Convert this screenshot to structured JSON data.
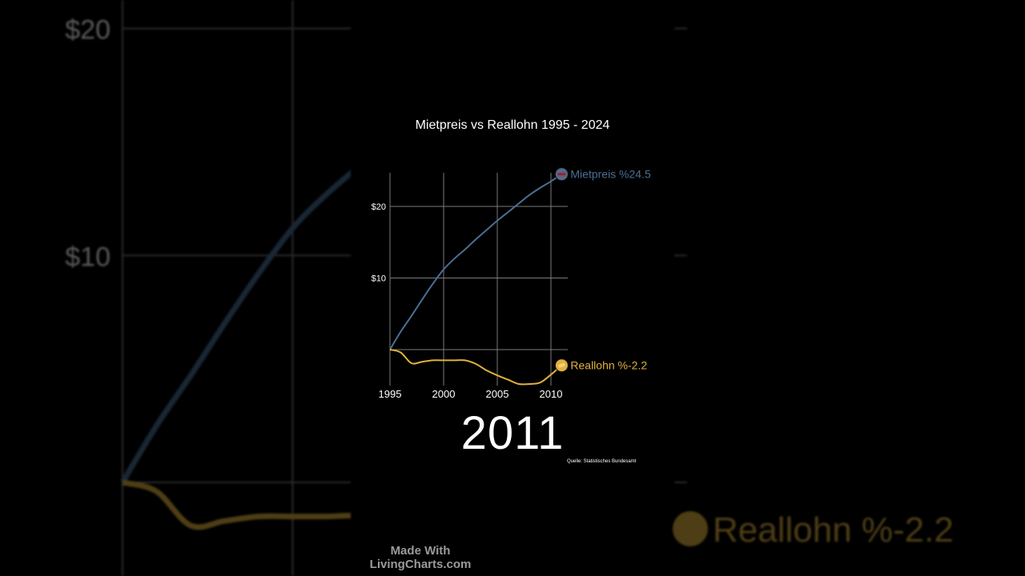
{
  "title": "Mietpreis vs Reallohn 1995 - 2024",
  "current_year": "2011",
  "source": "Quelle: Statistisches Bundesamt",
  "watermark": {
    "line1": "Made With",
    "line2": "LivingCharts.com"
  },
  "colors": {
    "mietpreis": "#4a6f95",
    "reallohn": "#e0b23d",
    "grid": "#7a7a7a",
    "text": "#ffffff"
  },
  "icons": {
    "mietpreis": "flag-icon",
    "reallohn": "coin-icon"
  },
  "chart_data": {
    "type": "line",
    "title": "Mietpreis vs Reallohn 1995 - 2024",
    "xlabel": "",
    "ylabel": "",
    "xlim": [
      1995,
      2011.5
    ],
    "ylim": [
      -5,
      25
    ],
    "x_ticks": [
      1995,
      2000,
      2005,
      2010
    ],
    "y_ticks": [
      10,
      20
    ],
    "y_tick_labels": [
      "$10",
      "$20"
    ],
    "grid": true,
    "series": [
      {
        "name": "Mietpreis",
        "end_label": "Mietpreis %24.5",
        "color": "#4a6f95",
        "x": [
          1995,
          1996,
          1997,
          1998,
          1999,
          2000,
          2001,
          2002,
          2003,
          2004,
          2005,
          2006,
          2007,
          2008,
          2009,
          2010,
          2011
        ],
        "values": [
          0,
          2.5,
          4.7,
          7.0,
          9.2,
          11.2,
          12.7,
          14.0,
          15.4,
          16.7,
          18.0,
          19.2,
          20.4,
          21.6,
          22.6,
          23.5,
          24.5
        ]
      },
      {
        "name": "Reallohn",
        "end_label": "Reallohn %-2.2",
        "color": "#e0b23d",
        "x": [
          1995,
          1996,
          1997,
          1998,
          1999,
          2000,
          2001,
          2002,
          2003,
          2004,
          2005,
          2006,
          2007,
          2008,
          2009,
          2010,
          2011
        ],
        "values": [
          0,
          -0.4,
          -1.9,
          -1.7,
          -1.5,
          -1.5,
          -1.5,
          -1.5,
          -2.0,
          -2.9,
          -3.6,
          -4.2,
          -4.8,
          -4.8,
          -4.6,
          -3.5,
          -2.2
        ]
      }
    ]
  }
}
